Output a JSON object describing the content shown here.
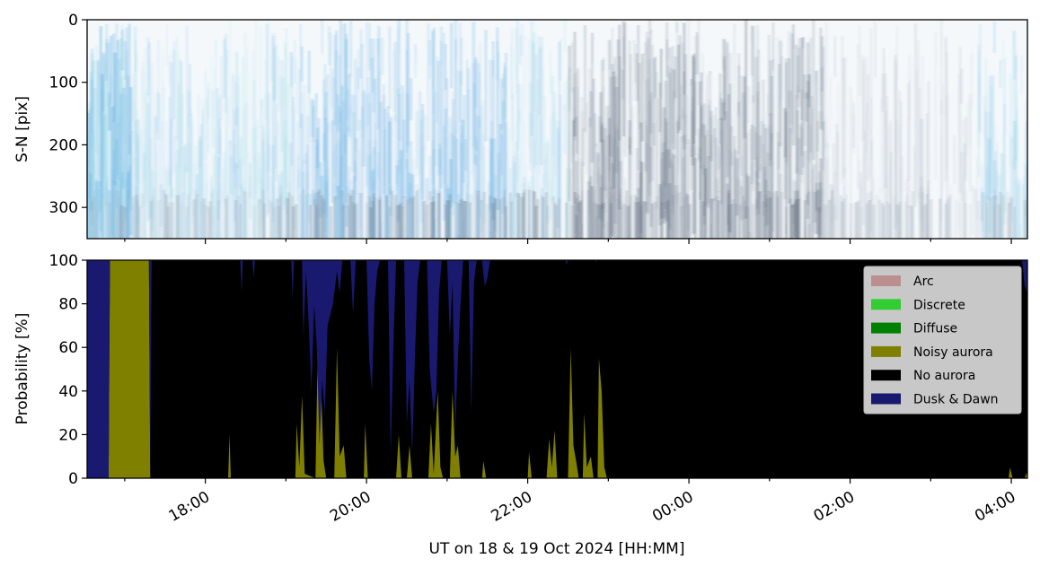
{
  "chart_data": [
    {
      "type": "heatmap",
      "ylabel": "S-N [pix]",
      "yticks": [
        0,
        100,
        200,
        300
      ],
      "ylim": [
        350,
        0
      ],
      "grid": false,
      "colors": {
        "keogram_light": "#f4f8fb",
        "keogram_blue": "#7fbde8",
        "keogram_cyan": "#a8e0e8",
        "keogram_grey": "#8a96a6",
        "keogram_dark": "#4d5a6e"
      }
    },
    {
      "type": "area",
      "stacked": true,
      "xlabel": "UT on 18 & 19 Oct 2024 [HH:MM]",
      "ylabel": "Probability [%]",
      "ylim": [
        0,
        100
      ],
      "yticks": [
        0,
        20,
        40,
        60,
        80,
        100
      ],
      "xlim": [
        "16:32",
        "04:12"
      ],
      "xticks": [
        "18:00",
        "20:00",
        "22:00",
        "00:00",
        "02:00",
        "04:00"
      ],
      "legend_position": "top-right",
      "grid": false,
      "series": [
        {
          "name": "Arc",
          "color": "#bc8f8f"
        },
        {
          "name": "Discrete",
          "color": "#32cd32"
        },
        {
          "name": "Diffuse",
          "color": "#008000"
        },
        {
          "name": "Noisy aurora",
          "color": "#808000"
        },
        {
          "name": "No aurora",
          "color": "#000000"
        },
        {
          "name": "Dusk & Dawn",
          "color": "#191970"
        }
      ],
      "noisy_aurora": [
        [
          "16:32",
          0
        ],
        [
          "16:48",
          0
        ],
        [
          "16:49",
          100
        ],
        [
          "17:18",
          100
        ],
        [
          "17:19",
          0
        ],
        [
          "18:17",
          0
        ],
        [
          "18:18",
          20
        ],
        [
          "18:19",
          0
        ],
        [
          "19:07",
          0
        ],
        [
          "19:08",
          25
        ],
        [
          "19:10",
          5
        ],
        [
          "19:12",
          38
        ],
        [
          "19:14",
          2
        ],
        [
          "19:22",
          0
        ],
        [
          "19:24",
          70
        ],
        [
          "19:26",
          45
        ],
        [
          "19:28",
          8
        ],
        [
          "19:30",
          0
        ],
        [
          "19:36",
          0
        ],
        [
          "19:38",
          60
        ],
        [
          "19:40",
          10
        ],
        [
          "19:43",
          15
        ],
        [
          "19:45",
          0
        ],
        [
          "19:58",
          0
        ],
        [
          "19:59",
          25
        ],
        [
          "20:01",
          0
        ],
        [
          "20:22",
          0
        ],
        [
          "20:24",
          20
        ],
        [
          "20:26",
          0
        ],
        [
          "20:30",
          0
        ],
        [
          "20:32",
          15
        ],
        [
          "20:34",
          0
        ],
        [
          "20:46",
          0
        ],
        [
          "20:48",
          25
        ],
        [
          "20:50",
          2
        ],
        [
          "20:53",
          40
        ],
        [
          "20:55",
          5
        ],
        [
          "20:57",
          0
        ],
        [
          "21:02",
          0
        ],
        [
          "21:04",
          40
        ],
        [
          "21:06",
          10
        ],
        [
          "21:08",
          15
        ],
        [
          "21:10",
          0
        ],
        [
          "21:26",
          0
        ],
        [
          "21:27",
          8
        ],
        [
          "21:29",
          0
        ],
        [
          "22:00",
          0
        ],
        [
          "22:01",
          12
        ],
        [
          "22:03",
          0
        ],
        [
          "22:14",
          0
        ],
        [
          "22:16",
          18
        ],
        [
          "22:18",
          5
        ],
        [
          "22:20",
          22
        ],
        [
          "22:22",
          0
        ],
        [
          "22:30",
          0
        ],
        [
          "22:32",
          60
        ],
        [
          "22:34",
          15
        ],
        [
          "22:36",
          8
        ],
        [
          "22:38",
          0
        ],
        [
          "22:41",
          0
        ],
        [
          "22:42",
          30
        ],
        [
          "22:44",
          5
        ],
        [
          "22:47",
          10
        ],
        [
          "22:49",
          0
        ],
        [
          "22:52",
          0
        ],
        [
          "22:53",
          55
        ],
        [
          "22:55",
          40
        ],
        [
          "22:57",
          5
        ],
        [
          "22:59",
          0
        ],
        [
          "03:58",
          0
        ],
        [
          "03:59",
          5
        ],
        [
          "04:01",
          0
        ],
        [
          "04:10",
          0
        ],
        [
          "04:11",
          2
        ],
        [
          "04:12",
          2
        ]
      ],
      "dusk_dawn": [
        [
          "16:32",
          100
        ],
        [
          "16:48",
          100
        ],
        [
          "16:49",
          0
        ],
        [
          "17:18",
          0
        ],
        [
          "17:19",
          100
        ],
        [
          "17:20",
          0
        ],
        [
          "18:26",
          0
        ],
        [
          "18:27",
          15
        ],
        [
          "18:28",
          0
        ],
        [
          "18:35",
          0
        ],
        [
          "18:36",
          8
        ],
        [
          "18:37",
          0
        ],
        [
          "19:04",
          0
        ],
        [
          "19:05",
          18
        ],
        [
          "19:06",
          0
        ],
        [
          "19:12",
          0
        ],
        [
          "19:13",
          35
        ],
        [
          "19:15",
          5
        ],
        [
          "19:17",
          30
        ],
        [
          "19:19",
          60
        ],
        [
          "19:21",
          20
        ],
        [
          "19:23",
          40
        ],
        [
          "19:25",
          85
        ],
        [
          "19:27",
          55
        ],
        [
          "19:29",
          70
        ],
        [
          "19:31",
          30
        ],
        [
          "19:33",
          25
        ],
        [
          "19:35",
          20
        ],
        [
          "19:38",
          5
        ],
        [
          "19:40",
          15
        ],
        [
          "19:42",
          0
        ],
        [
          "19:48",
          0
        ],
        [
          "19:50",
          25
        ],
        [
          "19:52",
          0
        ],
        [
          "20:00",
          0
        ],
        [
          "20:02",
          45
        ],
        [
          "20:04",
          60
        ],
        [
          "20:06",
          20
        ],
        [
          "20:08",
          5
        ],
        [
          "20:10",
          0
        ],
        [
          "20:16",
          0
        ],
        [
          "20:18",
          90
        ],
        [
          "20:20",
          40
        ],
        [
          "20:22",
          0
        ],
        [
          "20:28",
          0
        ],
        [
          "20:30",
          75
        ],
        [
          "20:32",
          55
        ],
        [
          "20:34",
          88
        ],
        [
          "20:36",
          45
        ],
        [
          "20:38",
          10
        ],
        [
          "20:40",
          0
        ],
        [
          "20:45",
          0
        ],
        [
          "20:47",
          50
        ],
        [
          "20:50",
          70
        ],
        [
          "20:52",
          60
        ],
        [
          "20:54",
          15
        ],
        [
          "20:56",
          0
        ],
        [
          "21:00",
          0
        ],
        [
          "21:02",
          35
        ],
        [
          "21:04",
          10
        ],
        [
          "21:06",
          80
        ],
        [
          "21:08",
          45
        ],
        [
          "21:10",
          20
        ],
        [
          "21:12",
          0
        ],
        [
          "21:16",
          0
        ],
        [
          "21:18",
          70
        ],
        [
          "21:20",
          10
        ],
        [
          "21:22",
          0
        ],
        [
          "21:26",
          0
        ],
        [
          "21:28",
          12
        ],
        [
          "21:30",
          8
        ],
        [
          "21:32",
          0
        ],
        [
          "22:28",
          0
        ],
        [
          "22:29",
          2
        ],
        [
          "22:30",
          0
        ],
        [
          "22:50",
          0
        ],
        [
          "22:51",
          1
        ],
        [
          "22:52",
          0
        ],
        [
          "04:08",
          0
        ],
        [
          "04:10",
          12
        ],
        [
          "04:12",
          15
        ]
      ]
    }
  ]
}
